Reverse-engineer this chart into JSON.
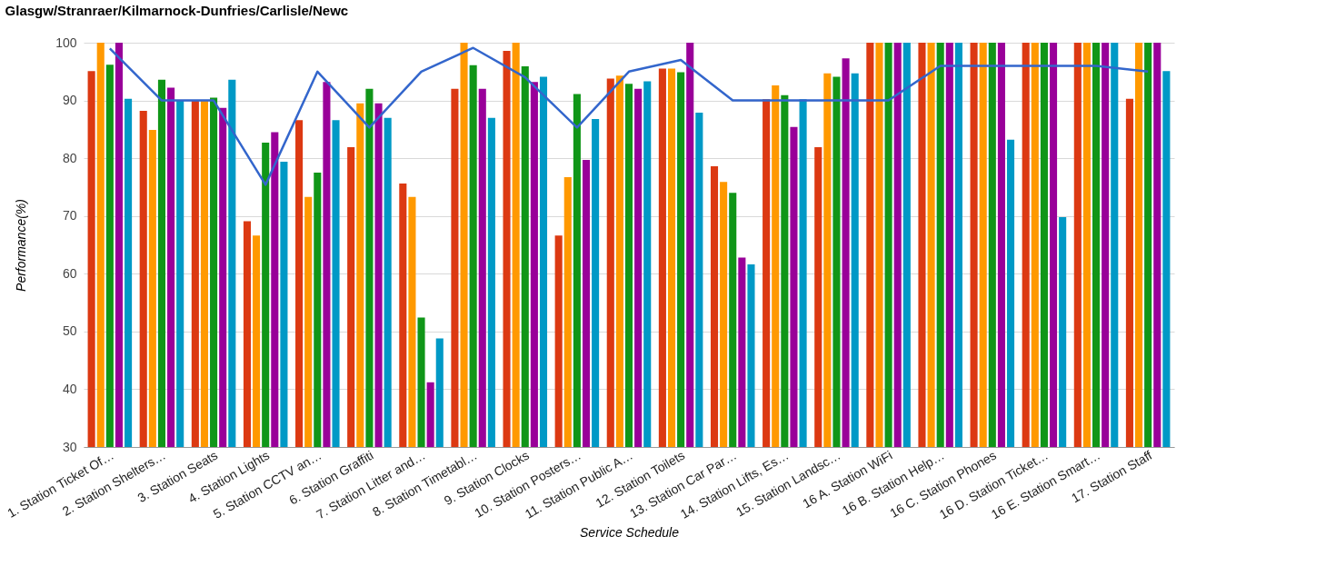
{
  "chart_data": {
    "type": "bar",
    "title": "Glasgw/Stranraer/Kilmarnock-Dunfries/Carlisle/Newc",
    "xlabel": "Service Schedule",
    "ylabel": "Performance(%)",
    "categories": [
      "1. Station Ticket Of…",
      "2. Station Shelters…",
      "3. Station Seats",
      "4. Station Lights",
      "5. Station CCTV an…",
      "6. Station Graffiti",
      "7. Station Litter and…",
      "8. Station Timetabl…",
      "9. Station Clocks",
      "10. Station Posters…",
      "11. Station Public A…",
      "12. Station Toilets",
      "13. Station Car Par…",
      "14. Station Lifts, Es…",
      "15. Station Landsc…",
      "16 A. Station WiFi",
      "16 B. Station Help…",
      "16 C. Station Phones",
      "16 D. Station Ticket…",
      "16 E. Station Smart…",
      "17. Station Staff"
    ],
    "series": [
      {
        "type": "line",
        "color": "#3366cc",
        "values": [
          99,
          90,
          90,
          75.4,
          95,
          85.3,
          95,
          99.1,
          94,
          85.3,
          95,
          97,
          90,
          90,
          90,
          90,
          96,
          96,
          96,
          96,
          95
        ]
      },
      {
        "color": "#dc3912",
        "values": [
          95.1,
          88.2,
          90,
          69.1,
          86.6,
          81.9,
          75.6,
          92,
          98.6,
          66.6,
          93.8,
          95.5,
          78.6,
          90.2,
          81.9,
          100,
          100,
          100,
          100,
          100,
          90.3
        ]
      },
      {
        "color": "#ff9900",
        "values": [
          100,
          84.9,
          90,
          66.6,
          73.3,
          89.5,
          73.3,
          100,
          100,
          76.7,
          94.3,
          95.5,
          75.9,
          92.6,
          94.7,
          100,
          100,
          100,
          100,
          100,
          100
        ]
      },
      {
        "color": "#109618",
        "values": [
          96.2,
          93.6,
          90.5,
          82.7,
          77.5,
          92,
          52.4,
          96.1,
          95.9,
          91.1,
          92.9,
          94.9,
          74,
          90.9,
          94.1,
          100,
          100,
          100,
          100,
          100,
          100
        ]
      },
      {
        "color": "#990099",
        "values": [
          100,
          92.2,
          88.7,
          84.5,
          93.2,
          89.5,
          41.2,
          92,
          93.2,
          79.7,
          92,
          100,
          62.8,
          85.4,
          97.3,
          100,
          100,
          100,
          100,
          100,
          100
        ]
      },
      {
        "color": "#0099c6",
        "values": [
          90.3,
          90,
          93.6,
          79.4,
          86.6,
          87,
          48.8,
          87,
          94.1,
          86.8,
          93.3,
          87.9,
          61.6,
          90.2,
          94.7,
          100,
          100,
          83.2,
          69.8,
          100,
          95.1
        ]
      }
    ],
    "ylim": [
      30,
      100
    ],
    "yticks": [
      30,
      40,
      50,
      60,
      70,
      80,
      90,
      100
    ],
    "grid": "y"
  }
}
